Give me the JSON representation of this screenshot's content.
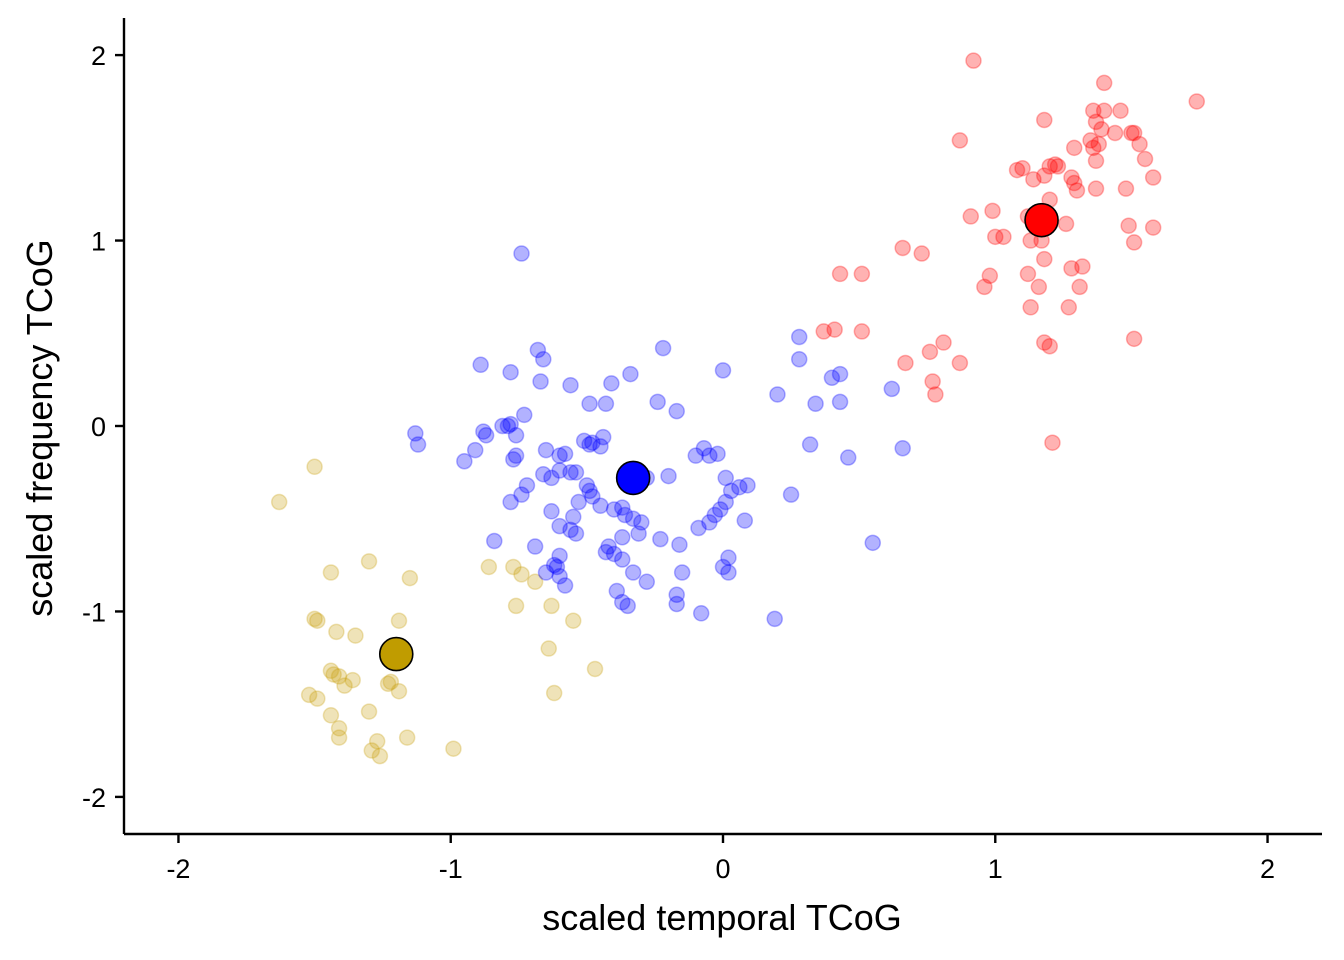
{
  "chart_data": {
    "type": "scatter",
    "title": "",
    "xlabel": "scaled temporal TCoG",
    "ylabel": "scaled frequency TCoG",
    "xlim": [
      -2.2,
      2.2
    ],
    "ylim": [
      -2.2,
      2.2
    ],
    "x_ticks": [
      -2,
      -1,
      0,
      1,
      2
    ],
    "y_ticks": [
      -2,
      -1,
      0,
      1,
      2
    ],
    "x_tick_labels": [
      "-2",
      "-1",
      "0",
      "1",
      "2"
    ],
    "y_tick_labels": [
      "-2",
      "-1",
      "0",
      "1",
      "2"
    ],
    "grid": false,
    "legend": "none",
    "series": [
      {
        "color": "#c9a214",
        "opacity": 0.3,
        "points": [
          [
            -1.63,
            -0.41
          ],
          [
            -1.5,
            -0.22
          ],
          [
            -1.5,
            -1.04
          ],
          [
            -1.49,
            -1.05
          ],
          [
            -1.44,
            -1.32
          ],
          [
            -1.43,
            -1.34
          ],
          [
            -1.41,
            -1.35
          ],
          [
            -1.42,
            -1.11
          ],
          [
            -1.35,
            -1.13
          ],
          [
            -1.36,
            -1.37
          ],
          [
            -1.39,
            -1.4
          ],
          [
            -1.44,
            -1.56
          ],
          [
            -1.52,
            -1.45
          ],
          [
            -1.49,
            -1.47
          ],
          [
            -1.41,
            -1.63
          ],
          [
            -1.41,
            -1.68
          ],
          [
            -1.3,
            -1.54
          ],
          [
            -1.29,
            -1.75
          ],
          [
            -1.27,
            -1.7
          ],
          [
            -1.26,
            -1.78
          ],
          [
            -1.23,
            -1.39
          ],
          [
            -1.22,
            -1.38
          ],
          [
            -1.19,
            -1.43
          ],
          [
            -1.19,
            -1.05
          ],
          [
            -1.3,
            -0.73
          ],
          [
            -1.44,
            -0.79
          ],
          [
            -1.15,
            -0.82
          ],
          [
            -1.16,
            -1.68
          ],
          [
            -0.99,
            -1.74
          ],
          [
            -0.86,
            -0.76
          ],
          [
            -0.77,
            -0.76
          ],
          [
            -0.74,
            -0.8
          ],
          [
            -0.69,
            -0.84
          ],
          [
            -0.76,
            -0.97
          ],
          [
            -0.63,
            -0.97
          ],
          [
            -0.64,
            -1.2
          ],
          [
            -0.62,
            -1.44
          ],
          [
            -0.55,
            -1.05
          ],
          [
            -0.47,
            -1.31
          ]
        ]
      },
      {
        "color": "#0000ff",
        "opacity": 0.3,
        "points": [
          [
            -0.74,
            0.93
          ],
          [
            -0.89,
            0.33
          ],
          [
            -0.78,
            0.29
          ],
          [
            -0.68,
            0.41
          ],
          [
            -0.66,
            0.36
          ],
          [
            -0.67,
            0.24
          ],
          [
            -0.56,
            0.22
          ],
          [
            -0.41,
            0.23
          ],
          [
            -0.34,
            0.28
          ],
          [
            -0.22,
            0.42
          ],
          [
            -0.24,
            0.13
          ],
          [
            -0.17,
            0.08
          ],
          [
            -0.43,
            0.12
          ],
          [
            -0.49,
            0.12
          ],
          [
            -0.73,
            0.06
          ],
          [
            -0.78,
            0.01
          ],
          [
            -0.79,
            0.0
          ],
          [
            -0.81,
            0.0
          ],
          [
            -0.88,
            -0.03
          ],
          [
            -0.87,
            -0.05
          ],
          [
            -0.91,
            -0.13
          ],
          [
            -0.76,
            -0.05
          ],
          [
            -0.76,
            -0.16
          ],
          [
            -0.77,
            -0.18
          ],
          [
            -1.13,
            -0.04
          ],
          [
            -1.12,
            -0.1
          ],
          [
            -0.95,
            -0.19
          ],
          [
            -0.65,
            -0.13
          ],
          [
            -0.58,
            -0.15
          ],
          [
            -0.6,
            -0.16
          ],
          [
            -0.51,
            -0.08
          ],
          [
            -0.49,
            -0.1
          ],
          [
            -0.45,
            -0.11
          ],
          [
            -0.48,
            -0.09
          ],
          [
            -0.44,
            -0.06
          ],
          [
            -0.54,
            -0.25
          ],
          [
            -0.6,
            -0.24
          ],
          [
            -0.63,
            -0.28
          ],
          [
            -0.66,
            -0.26
          ],
          [
            -0.72,
            -0.32
          ],
          [
            -0.74,
            -0.37
          ],
          [
            -0.78,
            -0.41
          ],
          [
            -0.56,
            -0.25
          ],
          [
            -0.5,
            -0.32
          ],
          [
            -0.49,
            -0.35
          ],
          [
            -0.48,
            -0.38
          ],
          [
            -0.45,
            -0.43
          ],
          [
            -0.53,
            -0.41
          ],
          [
            -0.55,
            -0.49
          ],
          [
            -0.63,
            -0.46
          ],
          [
            -0.6,
            -0.54
          ],
          [
            -0.56,
            -0.56
          ],
          [
            -0.4,
            -0.45
          ],
          [
            -0.37,
            -0.44
          ],
          [
            -0.36,
            -0.48
          ],
          [
            -0.33,
            -0.5
          ],
          [
            -0.3,
            -0.52
          ],
          [
            -0.28,
            -0.28
          ],
          [
            -0.2,
            -0.27
          ],
          [
            -0.1,
            -0.16
          ],
          [
            -0.07,
            -0.12
          ],
          [
            -0.05,
            -0.16
          ],
          [
            -0.02,
            -0.15
          ],
          [
            0.01,
            -0.28
          ],
          [
            0.03,
            -0.35
          ],
          [
            0.06,
            -0.33
          ],
          [
            0.09,
            -0.32
          ],
          [
            -0.01,
            -0.45
          ],
          [
            -0.03,
            -0.48
          ],
          [
            0.01,
            -0.41
          ],
          [
            -0.05,
            -0.52
          ],
          [
            0.08,
            -0.51
          ],
          [
            -0.09,
            -0.55
          ],
          [
            -0.16,
            -0.64
          ],
          [
            -0.23,
            -0.61
          ],
          [
            -0.31,
            -0.58
          ],
          [
            -0.37,
            -0.6
          ],
          [
            -0.42,
            -0.65
          ],
          [
            -0.43,
            -0.68
          ],
          [
            -0.4,
            -0.69
          ],
          [
            -0.37,
            -0.72
          ],
          [
            -0.54,
            -0.58
          ],
          [
            -0.6,
            -0.7
          ],
          [
            -0.61,
            -0.76
          ],
          [
            -0.62,
            -0.75
          ],
          [
            -0.65,
            -0.79
          ],
          [
            -0.6,
            -0.81
          ],
          [
            -0.58,
            -0.86
          ],
          [
            -0.69,
            -0.65
          ],
          [
            -0.84,
            -0.62
          ],
          [
            -0.39,
            -0.89
          ],
          [
            -0.37,
            -0.95
          ],
          [
            -0.35,
            -0.97
          ],
          [
            -0.33,
            -0.79
          ],
          [
            -0.28,
            -0.84
          ],
          [
            -0.17,
            -0.91
          ],
          [
            -0.17,
            -0.96
          ],
          [
            -0.08,
            -1.01
          ],
          [
            0.0,
            -0.76
          ],
          [
            0.02,
            -0.79
          ],
          [
            0.02,
            -0.71
          ],
          [
            -0.15,
            -0.79
          ],
          [
            0.19,
            -1.04
          ],
          [
            0.2,
            0.17
          ],
          [
            0.25,
            -0.37
          ],
          [
            0.28,
            0.36
          ],
          [
            0.28,
            0.48
          ],
          [
            0.32,
            -0.1
          ],
          [
            0.34,
            0.12
          ],
          [
            0.4,
            0.26
          ],
          [
            0.43,
            0.28
          ],
          [
            0.43,
            0.13
          ],
          [
            0.46,
            -0.17
          ],
          [
            0.55,
            -0.63
          ],
          [
            0.62,
            0.2
          ],
          [
            0.66,
            -0.12
          ],
          [
            0.0,
            0.3
          ]
        ]
      },
      {
        "color": "#ff0000",
        "opacity": 0.3,
        "points": [
          [
            0.92,
            1.97
          ],
          [
            1.4,
            1.85
          ],
          [
            1.74,
            1.75
          ],
          [
            1.36,
            1.7
          ],
          [
            1.4,
            1.7
          ],
          [
            1.46,
            1.7
          ],
          [
            1.37,
            1.64
          ],
          [
            1.39,
            1.6
          ],
          [
            1.18,
            1.65
          ],
          [
            1.44,
            1.58
          ],
          [
            1.5,
            1.58
          ],
          [
            1.51,
            1.58
          ],
          [
            1.35,
            1.54
          ],
          [
            1.38,
            1.52
          ],
          [
            1.36,
            1.5
          ],
          [
            1.29,
            1.5
          ],
          [
            1.53,
            1.52
          ],
          [
            1.55,
            1.44
          ],
          [
            1.37,
            1.43
          ],
          [
            1.22,
            1.41
          ],
          [
            1.2,
            1.4
          ],
          [
            1.23,
            1.4
          ],
          [
            1.08,
            1.38
          ],
          [
            1.1,
            1.39
          ],
          [
            1.14,
            1.33
          ],
          [
            1.18,
            1.35
          ],
          [
            1.28,
            1.34
          ],
          [
            1.29,
            1.31
          ],
          [
            1.3,
            1.27
          ],
          [
            1.37,
            1.28
          ],
          [
            1.48,
            1.28
          ],
          [
            1.58,
            1.34
          ],
          [
            0.87,
            1.54
          ],
          [
            1.2,
            1.22
          ],
          [
            1.17,
            1.14
          ],
          [
            1.12,
            1.13
          ],
          [
            0.91,
            1.13
          ],
          [
            0.99,
            1.16
          ],
          [
            1.26,
            1.09
          ],
          [
            1.13,
            1.0
          ],
          [
            1.0,
            1.02
          ],
          [
            1.03,
            1.02
          ],
          [
            1.17,
            1.0
          ],
          [
            1.49,
            1.08
          ],
          [
            1.58,
            1.07
          ],
          [
            1.51,
            0.99
          ],
          [
            1.18,
            0.9
          ],
          [
            1.28,
            0.85
          ],
          [
            1.32,
            0.86
          ],
          [
            1.12,
            0.82
          ],
          [
            1.31,
            0.75
          ],
          [
            1.16,
            0.75
          ],
          [
            0.98,
            0.81
          ],
          [
            0.96,
            0.75
          ],
          [
            0.66,
            0.96
          ],
          [
            0.73,
            0.93
          ],
          [
            0.43,
            0.82
          ],
          [
            0.51,
            0.82
          ],
          [
            0.37,
            0.51
          ],
          [
            0.41,
            0.52
          ],
          [
            0.51,
            0.51
          ],
          [
            0.67,
            0.34
          ],
          [
            0.76,
            0.4
          ],
          [
            0.81,
            0.45
          ],
          [
            0.87,
            0.34
          ],
          [
            0.77,
            0.24
          ],
          [
            0.78,
            0.17
          ],
          [
            1.13,
            0.64
          ],
          [
            1.27,
            0.64
          ],
          [
            1.18,
            0.45
          ],
          [
            1.2,
            0.43
          ],
          [
            1.51,
            0.47
          ],
          [
            1.21,
            -0.09
          ]
        ]
      }
    ],
    "centroids": [
      {
        "x": -1.2,
        "y": -1.23,
        "color": "#c09c00"
      },
      {
        "x": -0.33,
        "y": -0.28,
        "color": "#0000ff"
      },
      {
        "x": 1.17,
        "y": 1.11,
        "color": "#ff0000"
      }
    ]
  }
}
